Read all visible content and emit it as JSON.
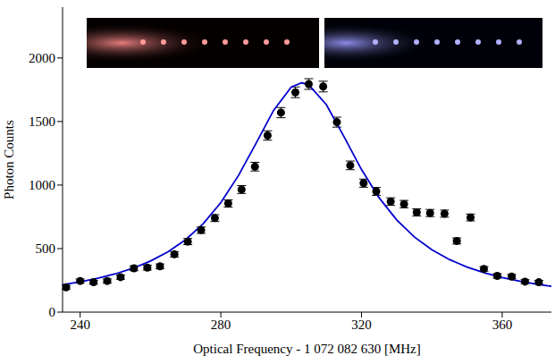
{
  "chart_data": {
    "type": "scatter",
    "xlabel": "Optical Frequency - 1 072 082 630 [MHz]",
    "ylabel": "Photon Counts",
    "x": [
      236,
      240,
      243.8,
      247.7,
      251.5,
      255.3,
      259.1,
      262.7,
      266.8,
      270.6,
      274.4,
      278.3,
      282.1,
      285.9,
      289.7,
      293.3,
      297.1,
      301.2,
      305,
      309.1,
      313,
      316.8,
      320.6,
      324.2,
      328.3,
      332.1,
      335.7,
      339.5,
      343.6,
      347.1,
      351,
      354.8,
      358.6,
      362.7,
      366.5,
      370.4
    ],
    "values": [
      195,
      245,
      235,
      245,
      275,
      345,
      350,
      360,
      455,
      555,
      645,
      740,
      855,
      965,
      1145,
      1390,
      1570,
      1730,
      1795,
      1775,
      1495,
      1155,
      1015,
      950,
      870,
      850,
      785,
      780,
      775,
      560,
      745,
      340,
      285,
      280,
      240,
      235
    ],
    "errors": [
      14,
      16,
      15,
      16,
      17,
      19,
      19,
      19,
      21,
      24,
      25,
      27,
      29,
      31,
      34,
      37,
      40,
      42,
      42,
      42,
      39,
      34,
      32,
      31,
      30,
      29,
      28,
      28,
      28,
      24,
      27,
      18,
      17,
      17,
      15,
      15
    ],
    "color": "#000000",
    "marker": "circle",
    "fit": {
      "type": "line",
      "color": "#0000cc",
      "line_style": "solid",
      "x": [
        235,
        240,
        245,
        250,
        255,
        260,
        265,
        270,
        275,
        280,
        285,
        290,
        295,
        300,
        303,
        305,
        310,
        315,
        320,
        325,
        330,
        335,
        340,
        345,
        350,
        355,
        360,
        365,
        370,
        374
      ],
      "values": [
        215,
        238,
        266,
        301,
        345,
        402,
        475,
        570,
        696,
        862,
        1074,
        1328,
        1588,
        1771,
        1805,
        1789,
        1633,
        1382,
        1122,
        900,
        726,
        592,
        491,
        414,
        355,
        309,
        272,
        243,
        219,
        203
      ]
    },
    "xlim": [
      235,
      374
    ],
    "xticks": [
      240,
      280,
      320,
      360
    ],
    "ylim": [
      0,
      2400
    ],
    "yticks": [
      0,
      500,
      1000,
      1500,
      2000
    ],
    "grid": false
  }
}
